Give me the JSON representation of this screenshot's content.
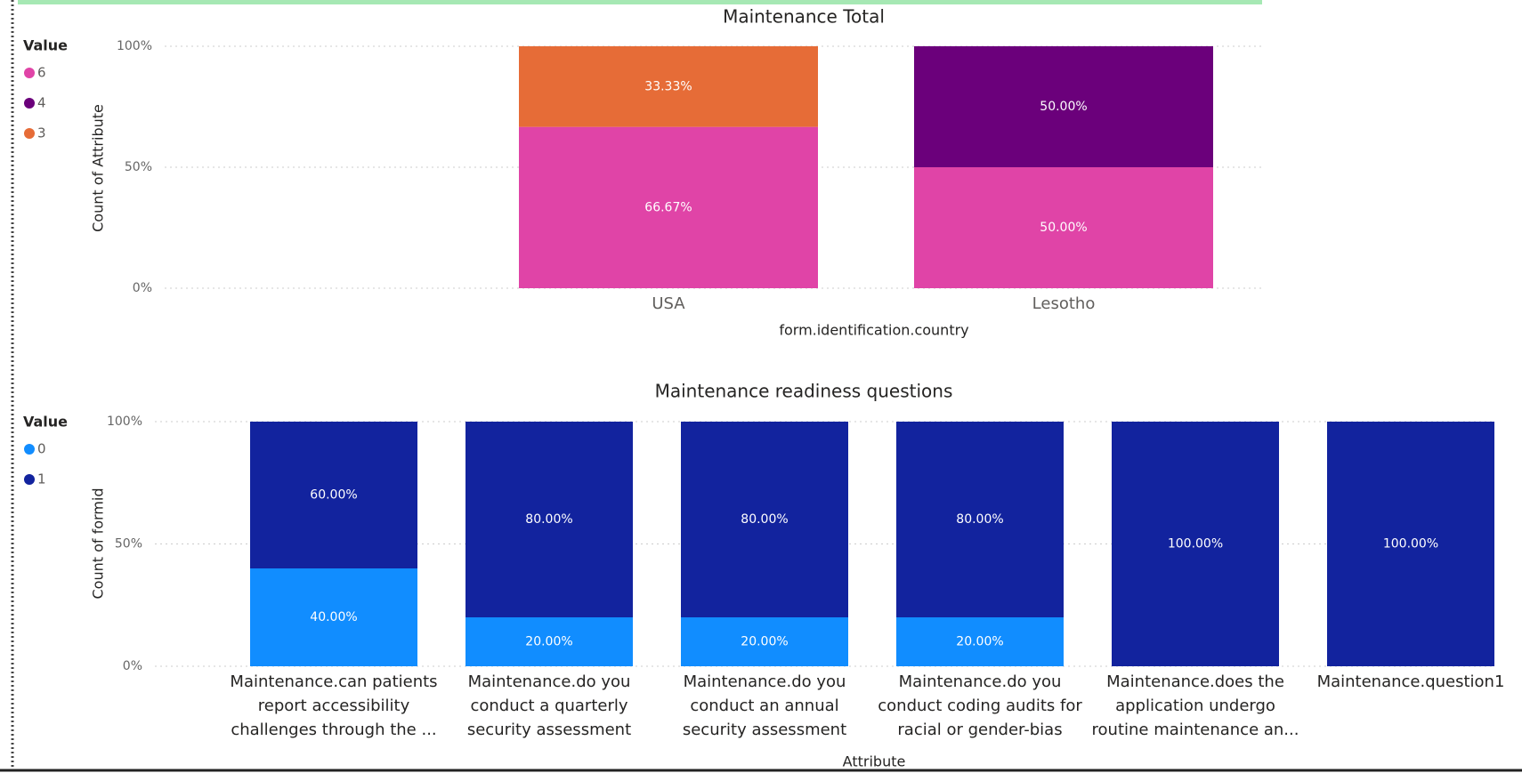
{
  "chart_data": [
    {
      "type": "stacked_bar_100",
      "title": "Maintenance Total",
      "legend_title": "Value",
      "x_label": "form.identification.country",
      "y_label": "Count of Attribute",
      "categories": [
        "USA",
        "Lesotho"
      ],
      "series": [
        {
          "name": "6",
          "color": "#e044a7",
          "values": [
            66.67,
            50
          ],
          "value_labels": [
            "66.67%",
            "50.00%"
          ]
        },
        {
          "name": "4",
          "color": "#6b007b",
          "values": [
            null,
            50
          ],
          "value_labels": [
            null,
            "50.00%"
          ]
        },
        {
          "name": "3",
          "color": "#e66c37",
          "values": [
            33.33,
            null
          ],
          "value_labels": [
            "33.33%",
            null
          ]
        }
      ],
      "ylim": [
        0,
        100
      ],
      "yticks": [
        {
          "value": 0,
          "label": "0%"
        },
        {
          "value": 50,
          "label": "50%"
        },
        {
          "value": 100,
          "label": "100%"
        }
      ],
      "grid": true
    },
    {
      "type": "stacked_bar_100",
      "title": "Maintenance readiness questions",
      "legend_title": "Value",
      "x_label": "Attribute",
      "y_label": "Count of formid",
      "categories": [
        "Maintenance.can patients report accessibility challenges through the ...",
        "Maintenance.do you conduct a quarterly security assessment",
        "Maintenance.do you conduct an annual security assessment",
        "Maintenance.do you conduct coding audits for racial or gender-bias",
        "Maintenance.does the application undergo routine maintenance an...",
        "Maintenance.question1"
      ],
      "series": [
        {
          "name": "0",
          "color": "#118dff",
          "values": [
            40,
            20,
            20,
            20,
            null,
            null
          ],
          "value_labels": [
            "40.00%",
            "20.00%",
            "20.00%",
            "20.00%",
            null,
            null
          ]
        },
        {
          "name": "1",
          "color": "#12239e",
          "values": [
            60,
            80,
            80,
            80,
            100,
            100
          ],
          "value_labels": [
            "60.00%",
            "80.00%",
            "80.00%",
            "80.00%",
            "100.00%",
            "100.00%"
          ]
        }
      ],
      "ylim": [
        0,
        100
      ],
      "yticks": [
        {
          "value": 0,
          "label": "0%"
        },
        {
          "value": 50,
          "label": "50%"
        },
        {
          "value": 100,
          "label": "100%"
        }
      ],
      "grid": true
    }
  ]
}
